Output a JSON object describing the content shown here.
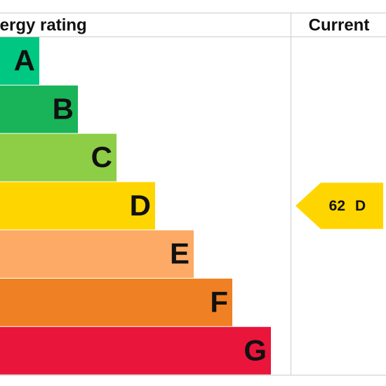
{
  "header": {
    "rating_title": "Energy rating",
    "current_title": "Current"
  },
  "bands": [
    {
      "letter": "A",
      "color": "#00c781"
    },
    {
      "letter": "B",
      "color": "#19b459"
    },
    {
      "letter": "C",
      "color": "#8dce46"
    },
    {
      "letter": "D",
      "color": "#ffd500"
    },
    {
      "letter": "E",
      "color": "#fcaa65"
    },
    {
      "letter": "F",
      "color": "#ef8023"
    },
    {
      "letter": "G",
      "color": "#e9153b"
    }
  ],
  "current": {
    "score": 62,
    "band": "D",
    "band_index": 3
  }
}
